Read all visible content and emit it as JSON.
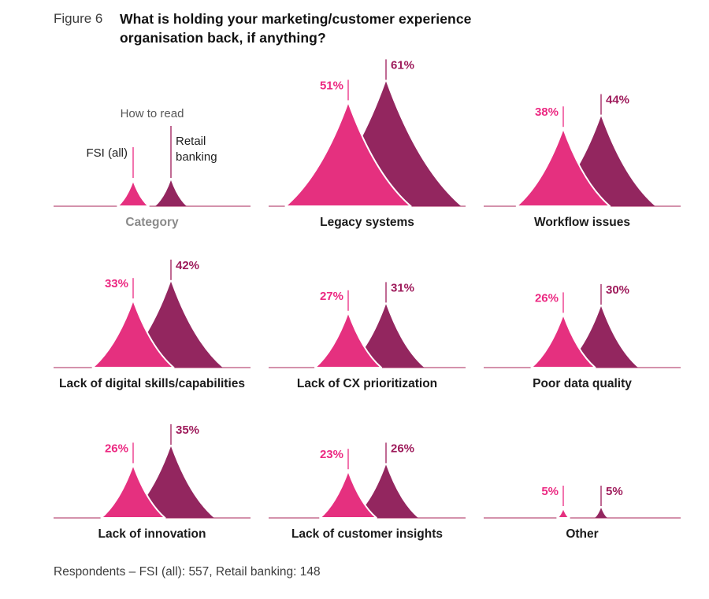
{
  "header": {
    "figure_label": "Figure 6",
    "title": "What is holding your marketing/customer experience organisation back, if anything?"
  },
  "legend": {
    "heading": "How to read",
    "fsi_label": "FSI (all)",
    "retail_label_line1": "Retail",
    "retail_label_line2": "banking",
    "category_label": "Category"
  },
  "colors": {
    "fsi_fill": "#E5307F",
    "retail_fill": "#93265F",
    "fsi_value": "#EC2982",
    "retail_value": "#9E1B5B",
    "baseline": "#C56E90",
    "legend_heading": "#575757",
    "legend_text": "#1f1f1f",
    "category_label": "#8A8A8A"
  },
  "chart_data": {
    "type": "area",
    "variant": "paired-peak-mountains",
    "series": [
      {
        "name": "FSI (all)",
        "color": "#E5307F"
      },
      {
        "name": "Retail banking",
        "color": "#93265F"
      }
    ],
    "value_suffix": "%",
    "ylim": [
      0,
      65
    ],
    "grid": false,
    "legend_position": "top-left-panel",
    "items": [
      {
        "label": "Legacy systems",
        "fsi_pct": 51,
        "retail_pct": 61
      },
      {
        "label": "Workflow issues",
        "fsi_pct": 38,
        "retail_pct": 44
      },
      {
        "label": "Lack of digital skills/capabilities",
        "fsi_pct": 33,
        "retail_pct": 42
      },
      {
        "label": "Lack of CX prioritization",
        "fsi_pct": 27,
        "retail_pct": 31
      },
      {
        "label": "Poor data quality",
        "fsi_pct": 26,
        "retail_pct": 30
      },
      {
        "label": "Lack of innovation",
        "fsi_pct": 26,
        "retail_pct": 35
      },
      {
        "label": "Lack of customer insights",
        "fsi_pct": 23,
        "retail_pct": 26
      },
      {
        "label": "Other",
        "fsi_pct": 5,
        "retail_pct": 5
      }
    ]
  },
  "footer": {
    "text": "Respondents – FSI (all): 557, Retail banking: 148"
  }
}
